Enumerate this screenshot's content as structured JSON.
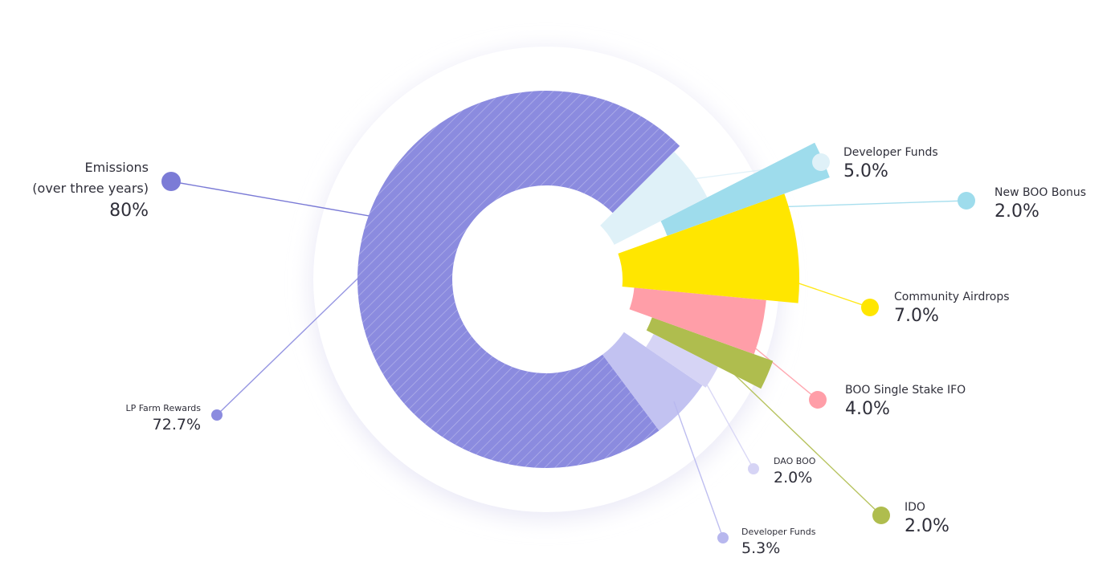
{
  "chart_data": {
    "type": "pie",
    "title": "",
    "slices": [
      {
        "name": "LP Farm Rewards",
        "value": 72.7,
        "label": "72.7%",
        "color": "#8b8bdf"
      },
      {
        "name": "Developer Funds",
        "value": 5.3,
        "label": "5.3%",
        "color": "#b7b7ee"
      },
      {
        "name": "DAO BOO",
        "value": 2.0,
        "label": "2.0%",
        "color": "#d6d4f5"
      },
      {
        "name": "IDO",
        "value": 2.0,
        "label": "2.0%",
        "color": "#afbd4e"
      },
      {
        "name": "BOO Single Stake IFO",
        "value": 4.0,
        "label": "4.0%",
        "color": "#ff9ea8"
      },
      {
        "name": "Community Airdrops",
        "value": 7.0,
        "label": "7.0%",
        "color": "#ffe600"
      },
      {
        "name": "New BOO Bonus",
        "value": 2.0,
        "label": "2.0%",
        "color": "#9edcec"
      },
      {
        "name": "Developer Funds",
        "value": 5.0,
        "label": "5.0%",
        "color": "#dff1f8"
      }
    ],
    "group": {
      "name_line1": "Emissions",
      "name_line2": "(over three years)",
      "label": "80%",
      "value": 80,
      "color": "#7b7bd6"
    }
  }
}
